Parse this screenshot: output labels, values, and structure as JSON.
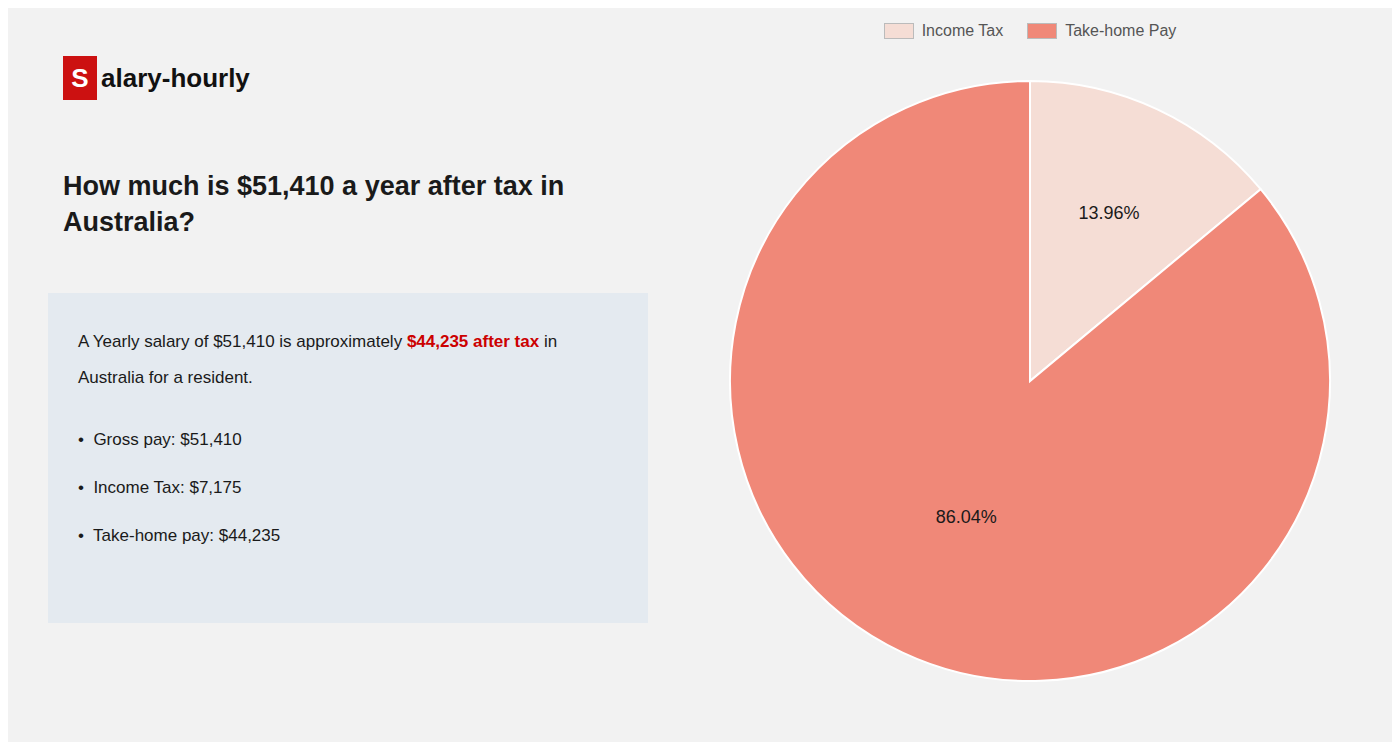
{
  "chart_data": {
    "type": "pie",
    "title": "How much is $51,410 a year after tax in\nAustralia?",
    "annotations": [
      {
        "text": "S",
        "color": "#cc1111"
      },
      "alary-hourly",
      "A Yearly salary of $51,410 is approximately ",
      {
        "text": "$44,235 after tax",
        "color": "#cc0000"
      },
      " in",
      "Australia for a resident.",
      "•  Gross pay: $51,410",
      "•  Income Tax: $7,175",
      "•  Take-home pay: $44,235"
    ],
    "categories": [
      "Income Tax",
      "Take-home Pay"
    ],
    "values": [
      13.96,
      86.04
    ],
    "value_labels": [
      "13.96%",
      "86.04%"
    ],
    "colors": [
      "#f5ddd5",
      "#f08878"
    ],
    "data_labels": true,
    "legend": "top"
  }
}
